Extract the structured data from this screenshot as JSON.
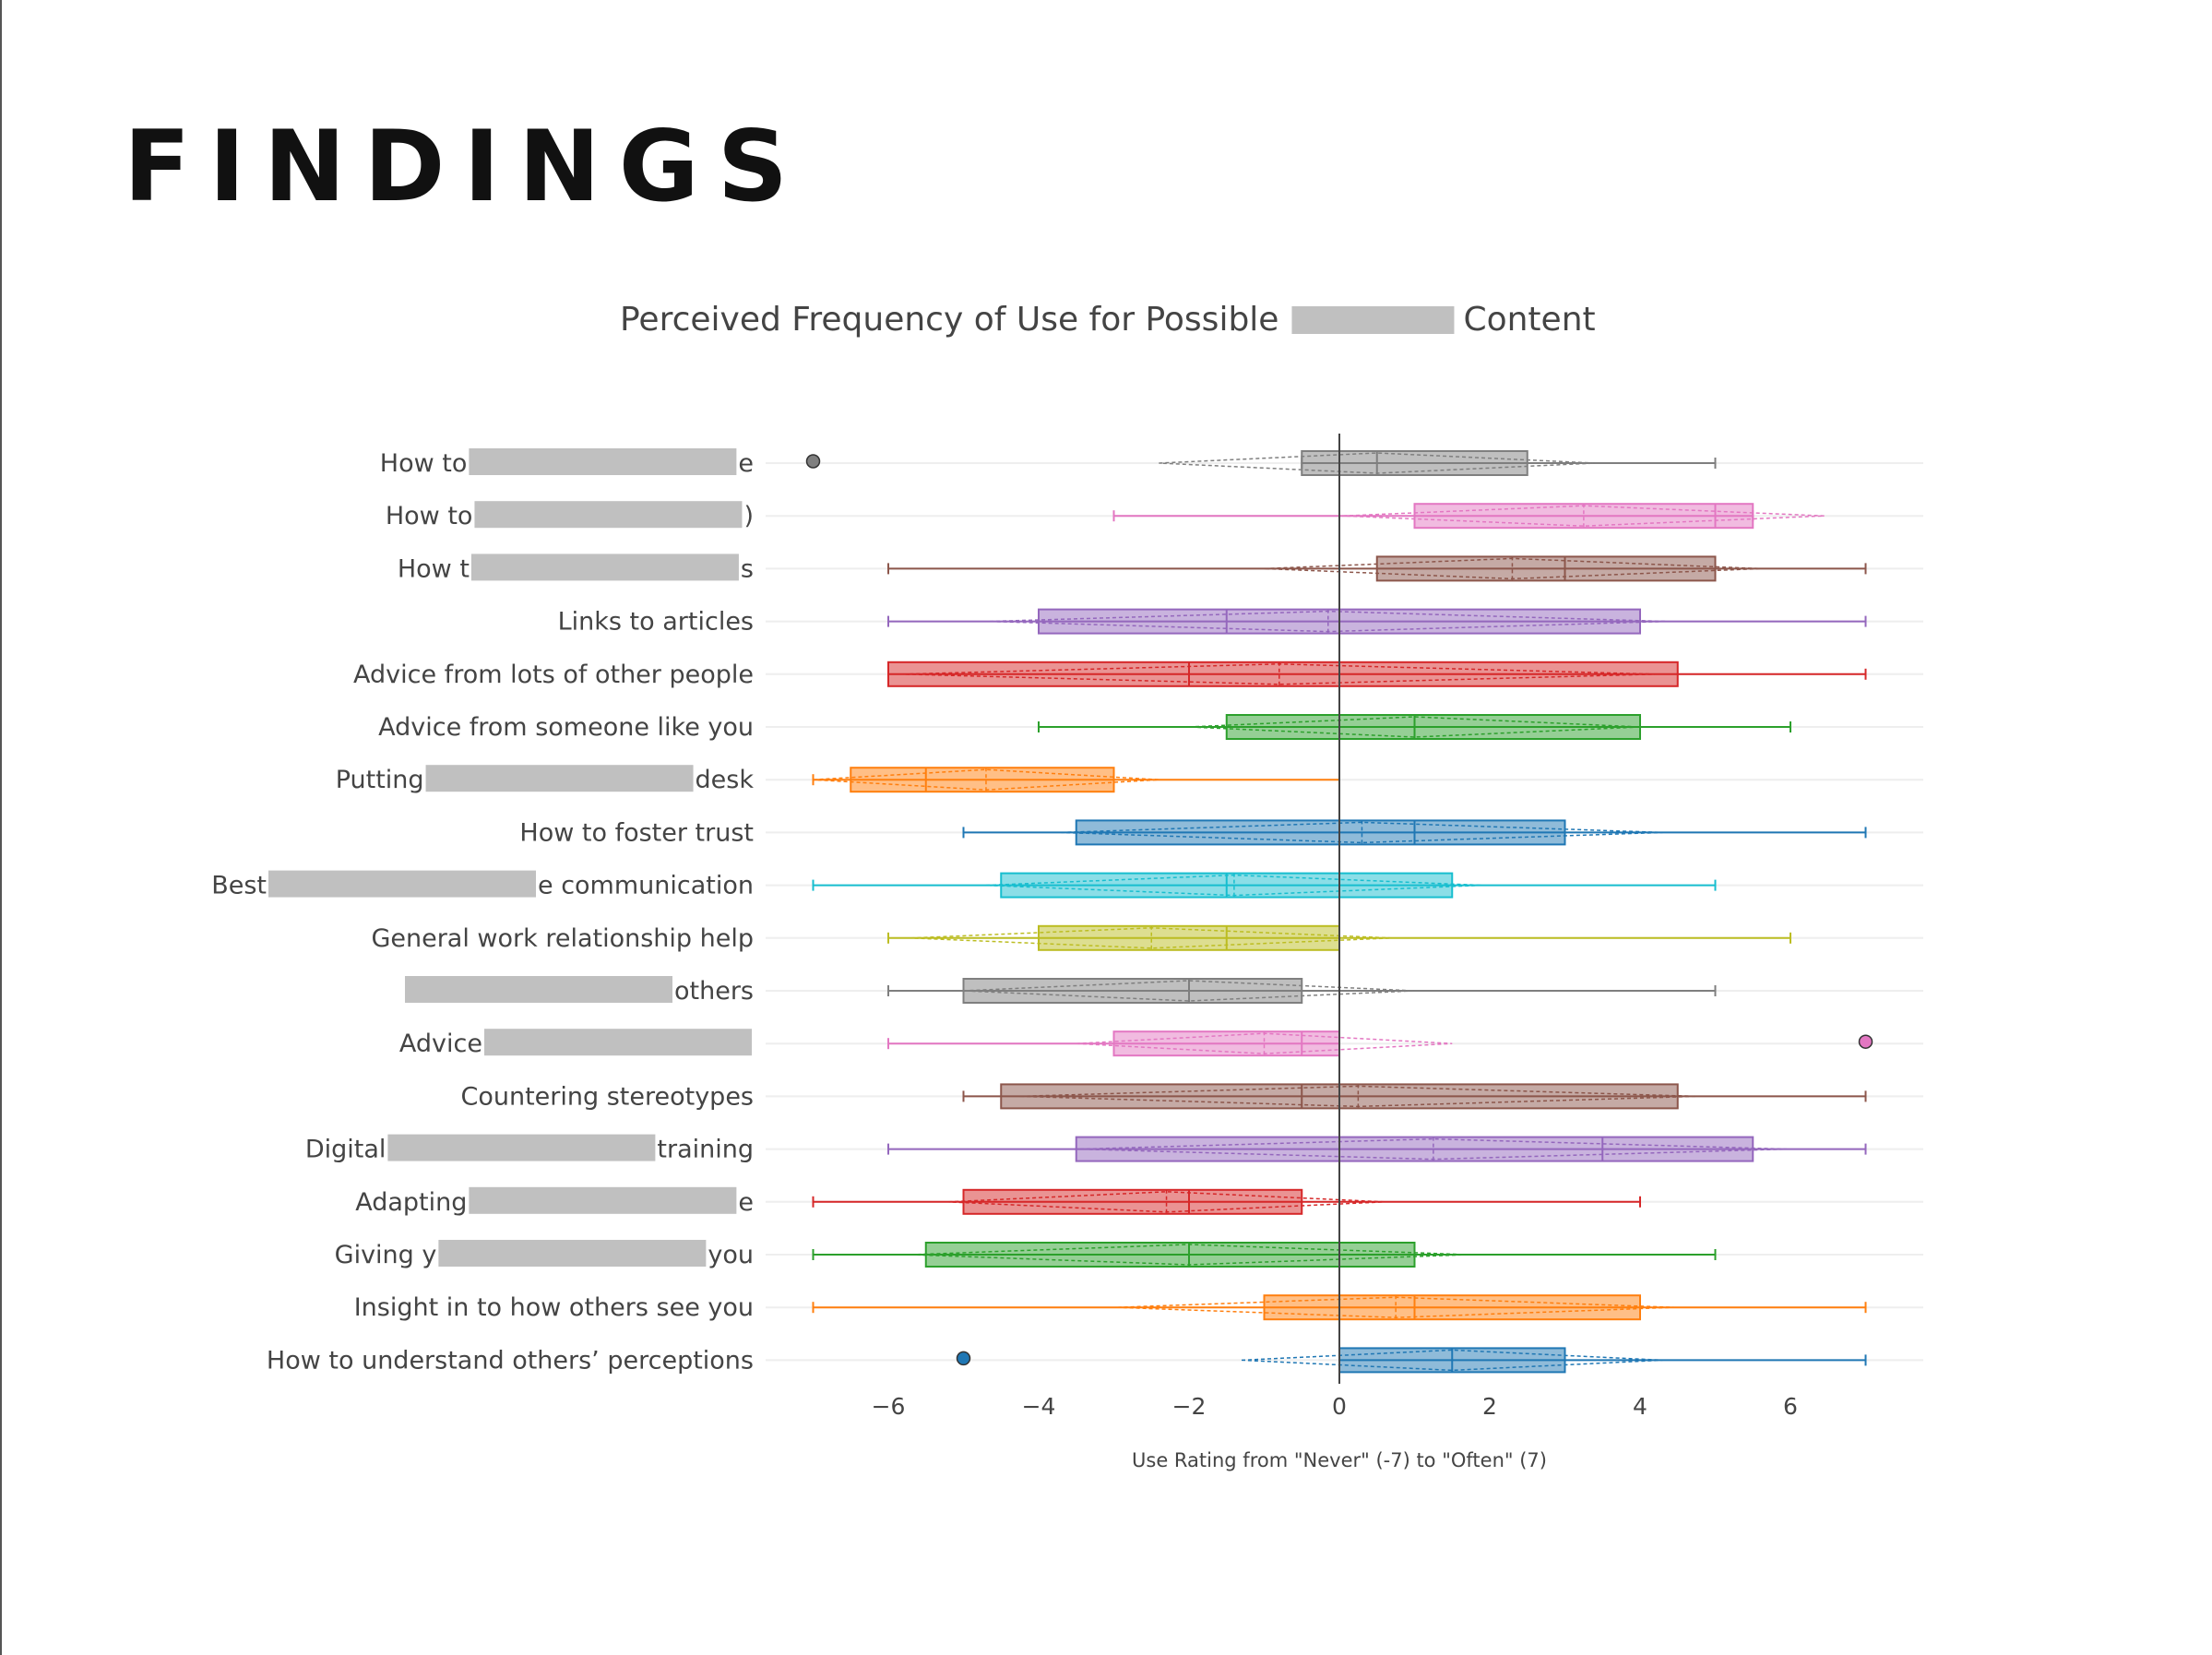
{
  "page": {
    "heading": "FINDINGS"
  },
  "colors": {
    "gray": "#7f7f7f",
    "pink": "#e377c2",
    "brown": "#8c564b",
    "purple": "#9467bd",
    "red": "#d62728",
    "green": "#2ca02c",
    "orange": "#ff7f0e",
    "blue": "#1f77b4",
    "cyan": "#17becf",
    "olive": "#bcbd22",
    "redaction": "#c0c0c0"
  },
  "chart_data": {
    "type": "box",
    "orientation": "horizontal",
    "title": "Perceived Frequency of Use for Possible [redacted] Content",
    "title_parts": [
      "Perceived Frequency of Use for Possible",
      "Content"
    ],
    "xlabel": "Use Rating from \"Never\" (-7) to \"Often\" (7)",
    "xlim": [
      -7.5,
      7.8
    ],
    "xticks": [
      -6,
      -4,
      -2,
      0,
      2,
      4,
      6
    ],
    "xtick_labels": [
      "−6",
      "−4",
      "−2",
      "0",
      "2",
      "4",
      "6"
    ],
    "grid": true,
    "legend": "none",
    "categories": [
      {
        "label_parts": [
          "How to ",
          "",
          "e"
        ],
        "color": "gray",
        "min": -0.5,
        "q1": -0.5,
        "median": 0.5,
        "q3": 2.5,
        "max": 5,
        "mean": 0.5,
        "sd": 2.9,
        "outliers": [
          -7
        ]
      },
      {
        "label_parts": [
          "How to ",
          "",
          ")"
        ],
        "color": "pink",
        "min": -3,
        "q1": 1,
        "median": 5,
        "q3": 5.5,
        "max": 5.5,
        "mean": 3.25,
        "sd": 3.2,
        "outliers": []
      },
      {
        "label_parts": [
          "How t",
          "",
          "s"
        ],
        "color": "brown",
        "min": -6,
        "q1": 0.5,
        "median": 3,
        "q3": 5,
        "max": 7,
        "mean": 2.3,
        "sd": 3.3,
        "outliers": []
      },
      {
        "label_parts": [
          "Links to articles",
          null,
          ""
        ],
        "color": "purple",
        "min": -6,
        "q1": -4,
        "median": -1.5,
        "q3": 4,
        "max": 7,
        "mean": -0.15,
        "sd": 4.5,
        "outliers": []
      },
      {
        "label_parts": [
          "Advice from lots of other people",
          null,
          ""
        ],
        "color": "red",
        "min": -6,
        "q1": -6,
        "median": -2,
        "q3": 4.5,
        "max": 7,
        "mean": -0.8,
        "sd": 5.0,
        "outliers": []
      },
      {
        "label_parts": [
          "Advice from someone like you",
          null,
          ""
        ],
        "color": "green",
        "min": -4,
        "q1": -1.5,
        "median": 1,
        "q3": 4,
        "max": 6,
        "mean": 1.0,
        "sd": 3.0,
        "outliers": []
      },
      {
        "label_parts": [
          "Putting ",
          "",
          " desk"
        ],
        "color": "orange",
        "min": -7,
        "q1": -6.5,
        "median": -5.5,
        "q3": -3,
        "max": 0,
        "mean": -4.7,
        "sd": 2.3,
        "outliers": []
      },
      {
        "label_parts": [
          "How to foster trust",
          null,
          ""
        ],
        "color": "blue",
        "min": -5,
        "q1": -3.5,
        "median": 1,
        "q3": 3,
        "max": 7,
        "mean": 0.3,
        "sd": 4.0,
        "outliers": []
      },
      {
        "label_parts": [
          "Best ",
          "",
          "e communication"
        ],
        "color": "cyan",
        "min": -7,
        "q1": -4.5,
        "median": -1.5,
        "q3": 1.5,
        "max": 5,
        "mean": -1.4,
        "sd": 3.3,
        "outliers": []
      },
      {
        "label_parts": [
          "General work relationship help",
          null,
          ""
        ],
        "color": "olive",
        "min": -6,
        "q1": -4,
        "median": -1.5,
        "q3": 0,
        "max": 6,
        "mean": -2.5,
        "sd": 3.2,
        "outliers": []
      },
      {
        "label_parts": [
          "",
          "",
          " others"
        ],
        "color": "gray",
        "min": -6,
        "q1": -5,
        "median": -2,
        "q3": -0.5,
        "max": 5,
        "mean": -2.0,
        "sd": 3.0,
        "outliers": []
      },
      {
        "label_parts": [
          "Advice ",
          "",
          ""
        ],
        "color": "pink",
        "min": -6,
        "q1": -3,
        "median": -0.5,
        "q3": 0,
        "max": 0,
        "mean": -1.0,
        "sd": 2.5,
        "outliers": [
          7
        ]
      },
      {
        "label_parts": [
          "Countering stereotypes",
          null,
          ""
        ],
        "color": "brown",
        "min": -5,
        "q1": -4.5,
        "median": -0.5,
        "q3": 4.5,
        "max": 7,
        "mean": 0.25,
        "sd": 4.5,
        "outliers": []
      },
      {
        "label_parts": [
          "Digital ",
          "",
          " training"
        ],
        "color": "purple",
        "min": -6,
        "q1": -3.5,
        "median": 3.5,
        "q3": 5.5,
        "max": 7,
        "mean": 1.25,
        "sd": 4.7,
        "outliers": []
      },
      {
        "label_parts": [
          "Adapting ",
          "",
          "e"
        ],
        "color": "red",
        "min": -7,
        "q1": -5,
        "median": -2,
        "q3": -0.5,
        "max": 4,
        "mean": -2.3,
        "sd": 2.9,
        "outliers": []
      },
      {
        "label_parts": [
          "Giving y",
          "",
          " you"
        ],
        "color": "green",
        "min": -7,
        "q1": -5.5,
        "median": -2,
        "q3": 1,
        "max": 5,
        "mean": -2.0,
        "sd": 3.7,
        "outliers": []
      },
      {
        "label_parts": [
          "Insight in to how others see you",
          null,
          ""
        ],
        "color": "orange",
        "min": -7,
        "q1": -1,
        "median": 1,
        "q3": 4,
        "max": 7,
        "mean": 0.75,
        "sd": 3.7,
        "outliers": []
      },
      {
        "label_parts": [
          "How to understand others’ perceptions",
          null,
          ""
        ],
        "color": "blue",
        "min": 0,
        "q1": 0,
        "median": 1.5,
        "q3": 3,
        "max": 7,
        "mean": 1.5,
        "sd": 2.8,
        "outliers": [
          -5
        ]
      }
    ]
  }
}
